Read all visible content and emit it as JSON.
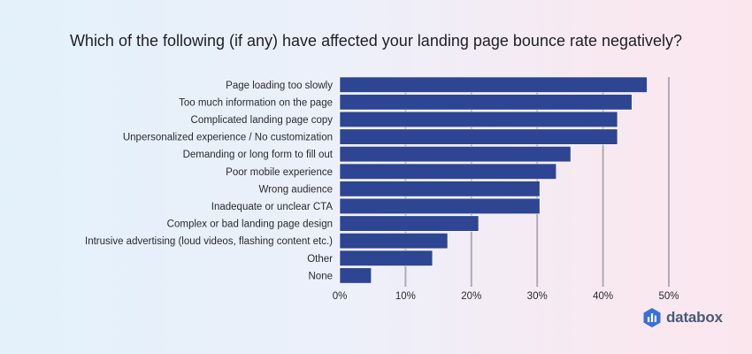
{
  "title": "Which of the following (if any) have affected your landing page bounce rate negatively?",
  "brand": "databox",
  "colors": {
    "bar": "#2e4593",
    "grid": "#b2aab7",
    "text": "#2a2a2e"
  },
  "chart_data": {
    "type": "bar",
    "orientation": "horizontal",
    "title": "Which of the following (if any) have affected your landing page bounce rate negatively?",
    "categories": [
      "Page loading too slowly",
      "Too much information on the page",
      "Complicated landing page copy",
      "Unpersonalized experience / No customization",
      "Demanding or long form to fill out",
      "Poor mobile experience",
      "Wrong audience",
      "Inadequate or unclear CTA",
      "Complex or bad landing page design",
      "Intrusive advertising (loud videos, flashing content etc.)",
      "Other",
      "None"
    ],
    "values": [
      46.7,
      44.4,
      42.2,
      42.2,
      35.1,
      32.9,
      30.4,
      30.4,
      21.1,
      16.4,
      14.1,
      4.8
    ],
    "xlim": [
      0,
      50
    ],
    "ticks": [
      0,
      10,
      20,
      30,
      40,
      50
    ],
    "tick_labels": [
      "0%",
      "10%",
      "20%",
      "30%",
      "40%",
      "50%"
    ],
    "grid": true,
    "xlabel": "",
    "ylabel": ""
  }
}
